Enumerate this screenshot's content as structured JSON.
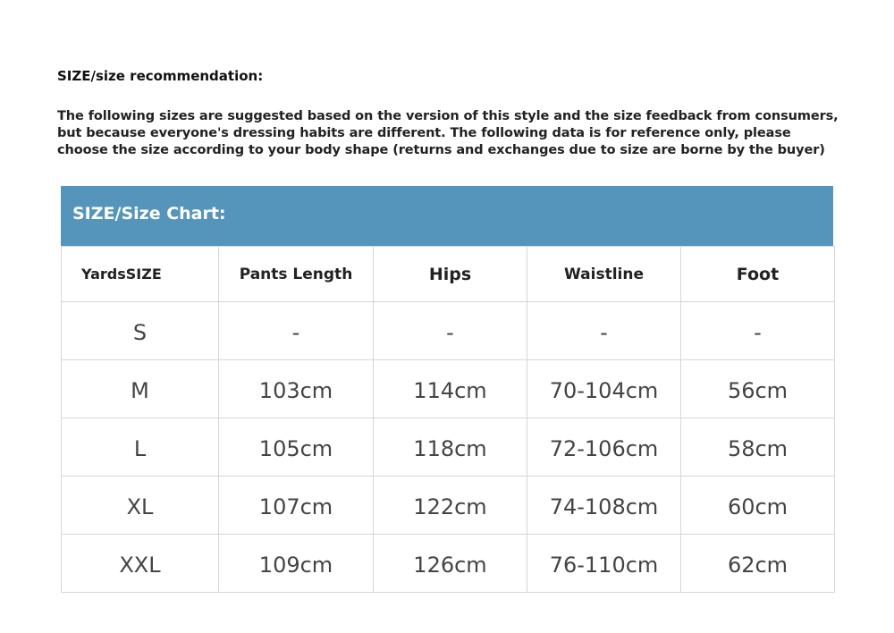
{
  "heading": "SIZE/size recommendation:",
  "description_lines": [
    "The following sizes are suggested based on the version of this style and the size feedback from consumers,",
    "but because everyone's dressing habits are different. The following data is for reference only, please",
    "choose the size according to your body shape (returns and exchanges due to size are borne by the buyer)"
  ],
  "chart_title": "SIZE/Size Chart:",
  "colors": {
    "banner": "#5595bb"
  },
  "table": {
    "headers": [
      "YardsSIZE",
      "Pants Length",
      "Hips",
      "Waistline",
      "Foot"
    ],
    "rows": [
      [
        "S",
        "-",
        "-",
        "-",
        "-"
      ],
      [
        "M",
        "103cm",
        "114cm",
        "70-104cm",
        "56cm"
      ],
      [
        "L",
        "105cm",
        "118cm",
        "72-106cm",
        "58cm"
      ],
      [
        "XL",
        "107cm",
        "122cm",
        "74-108cm",
        "60cm"
      ],
      [
        "XXL",
        "109cm",
        "126cm",
        "76-110cm",
        "62cm"
      ]
    ]
  }
}
